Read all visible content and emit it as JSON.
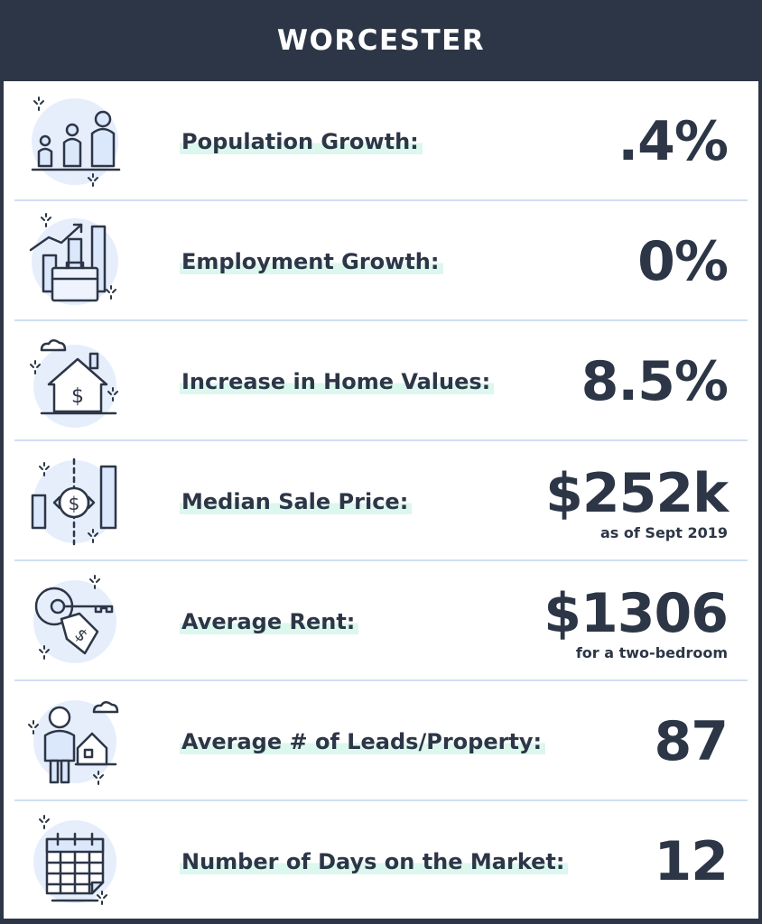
{
  "header": {
    "title": "WORCESTER"
  },
  "stats": [
    {
      "label": "Population Growth:",
      "value": ".4%",
      "icon": "people-icon"
    },
    {
      "label": "Employment Growth:",
      "value": "0%",
      "icon": "briefcase-chart-icon"
    },
    {
      "label": "Increase in Home Values:",
      "value": "8.5%",
      "icon": "house-dollar-icon"
    },
    {
      "label": "Median Sale Price:",
      "value": "$252k",
      "note": "as  of Sept 2019",
      "icon": "price-exchange-icon"
    },
    {
      "label": "Average Rent:",
      "value": "$1306",
      "note": "for a two-bedroom",
      "icon": "key-tag-icon"
    },
    {
      "label": "Average # of Leads/Property:",
      "value": "87",
      "icon": "person-house-icon"
    },
    {
      "label": "Number of Days on the Market:",
      "value": "12",
      "icon": "calendar-icon"
    }
  ],
  "colors": {
    "dark": "#2c3646",
    "highlight": "#dcf7ee",
    "divider": "#cfe0f5",
    "icon_fill": "#dbe7fb"
  }
}
